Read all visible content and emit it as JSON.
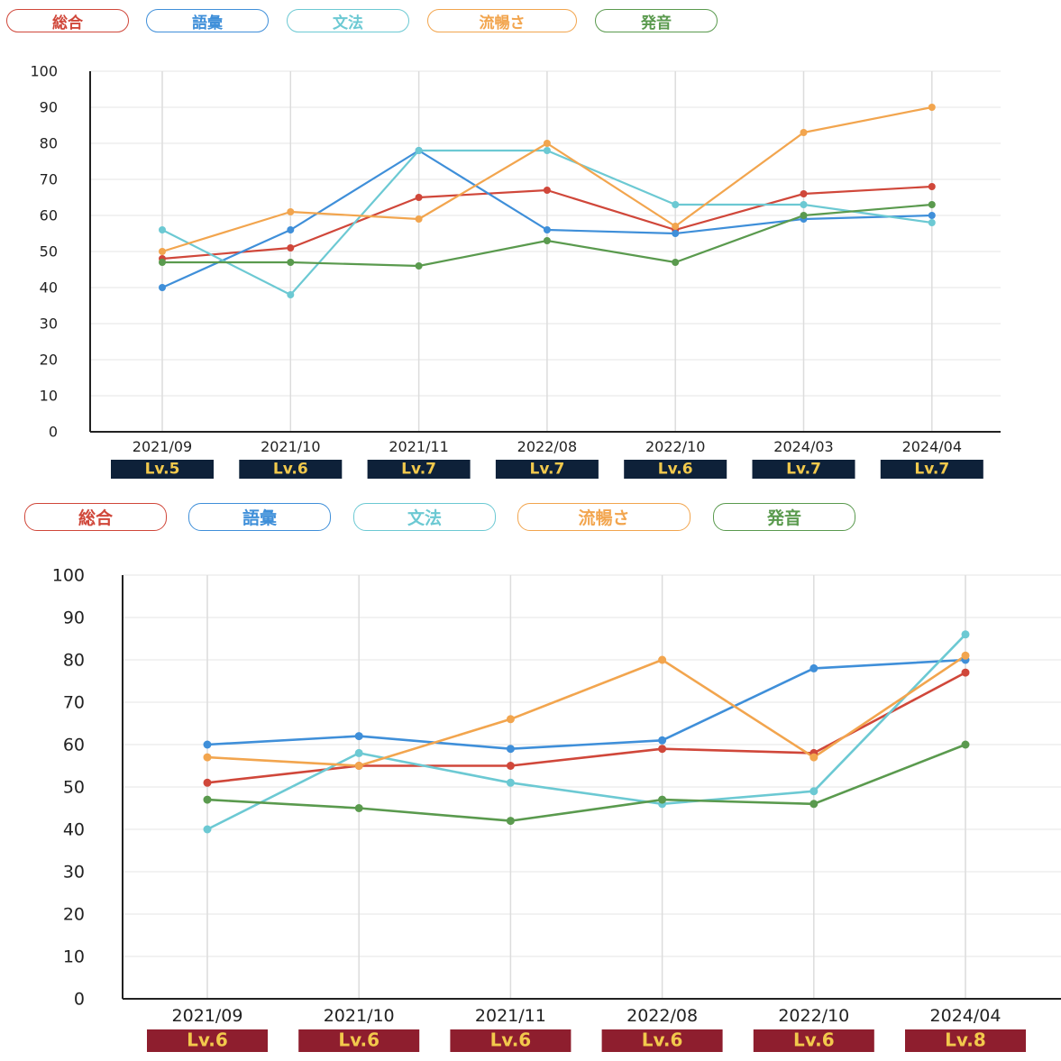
{
  "series_colors": {
    "overall": "#d0473a",
    "vocabulary": "#3f8fd9",
    "grammar": "#6cc9d3",
    "fluency": "#f2a54e",
    "pronunciation": "#5a9a4e"
  },
  "chart_data": [
    {
      "type": "line",
      "legend": [
        "総合",
        "語彙",
        "文法",
        "流暢さ",
        "発音"
      ],
      "categories": [
        "2021/09",
        "2021/10",
        "2021/11",
        "2022/08",
        "2022/10",
        "2024/03",
        "2024/04"
      ],
      "levels": [
        "Lv.5",
        "Lv.6",
        "Lv.7",
        "Lv.7",
        "Lv.6",
        "Lv.7",
        "Lv.7"
      ],
      "level_badge_color": "#0e2139",
      "ylim": [
        0,
        100
      ],
      "yticks": [
        0,
        10,
        20,
        30,
        40,
        50,
        60,
        70,
        80,
        90,
        100
      ],
      "grid": true,
      "series": [
        {
          "name": "総合",
          "color": "#d0473a",
          "values": [
            48,
            51,
            65,
            67,
            56,
            66,
            68
          ]
        },
        {
          "name": "語彙",
          "color": "#3f8fd9",
          "values": [
            40,
            56,
            78,
            56,
            55,
            59,
            60
          ]
        },
        {
          "name": "文法",
          "color": "#6cc9d3",
          "values": [
            56,
            38,
            78,
            78,
            63,
            63,
            58
          ]
        },
        {
          "name": "流暢さ",
          "color": "#f2a54e",
          "values": [
            50,
            61,
            59,
            80,
            57,
            83,
            90
          ]
        },
        {
          "name": "発音",
          "color": "#5a9a4e",
          "values": [
            47,
            47,
            46,
            53,
            47,
            60,
            63
          ]
        }
      ]
    },
    {
      "type": "line",
      "legend": [
        "総合",
        "語彙",
        "文法",
        "流暢さ",
        "発音"
      ],
      "categories": [
        "2021/09",
        "2021/10",
        "2021/11",
        "2022/08",
        "2022/10",
        "2024/04"
      ],
      "levels": [
        "Lv.6",
        "Lv.6",
        "Lv.6",
        "Lv.6",
        "Lv.6",
        "Lv.8"
      ],
      "level_badge_color": "#8e1e2e",
      "ylim": [
        0,
        100
      ],
      "yticks": [
        0,
        10,
        20,
        30,
        40,
        50,
        60,
        70,
        80,
        90,
        100
      ],
      "grid": true,
      "series": [
        {
          "name": "総合",
          "color": "#d0473a",
          "values": [
            51,
            55,
            55,
            59,
            58,
            77
          ]
        },
        {
          "name": "語彙",
          "color": "#3f8fd9",
          "values": [
            60,
            62,
            59,
            61,
            78,
            80
          ]
        },
        {
          "name": "文法",
          "color": "#6cc9d3",
          "values": [
            40,
            58,
            51,
            46,
            49,
            86
          ]
        },
        {
          "name": "流暢さ",
          "color": "#f2a54e",
          "values": [
            57,
            55,
            66,
            80,
            57,
            81
          ]
        },
        {
          "name": "発音",
          "color": "#5a9a4e",
          "values": [
            47,
            45,
            42,
            47,
            46,
            60
          ]
        }
      ]
    }
  ]
}
